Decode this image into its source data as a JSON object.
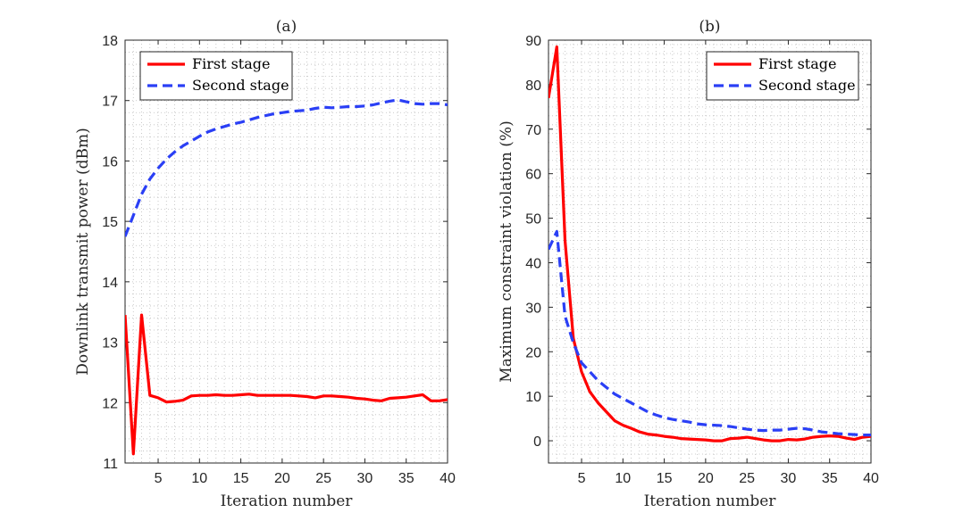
{
  "chart_data": [
    {
      "type": "line",
      "title": "(a)",
      "xlabel": "Iteration number",
      "ylabel": "Downlink transmit power (dBm)",
      "xlim": [
        1,
        40
      ],
      "ylim": [
        11,
        18
      ],
      "xticks": [
        5,
        10,
        15,
        20,
        25,
        30,
        35,
        40
      ],
      "yticks": [
        11,
        12,
        13,
        14,
        15,
        16,
        17,
        18
      ],
      "grid": "minor-dotted",
      "legend_position": "top-left",
      "series": [
        {
          "name": "First stage",
          "color": "#ff0000",
          "style": "solid",
          "x": [
            1,
            2,
            3,
            4,
            5,
            6,
            7,
            8,
            9,
            10,
            11,
            12,
            13,
            14,
            15,
            16,
            17,
            18,
            19,
            20,
            21,
            22,
            23,
            24,
            25,
            26,
            27,
            28,
            29,
            30,
            31,
            32,
            33,
            34,
            35,
            36,
            37,
            38,
            39,
            40
          ],
          "values": [
            13.45,
            11.15,
            13.45,
            12.12,
            12.08,
            12.01,
            12.02,
            12.04,
            12.11,
            12.12,
            12.12,
            12.13,
            12.12,
            12.12,
            12.13,
            12.14,
            12.12,
            12.12,
            12.12,
            12.12,
            12.12,
            12.11,
            12.1,
            12.08,
            12.11,
            12.11,
            12.1,
            12.09,
            12.07,
            12.06,
            12.04,
            12.03,
            12.07,
            12.08,
            12.09,
            12.11,
            12.13,
            12.03,
            12.03,
            12.05
          ]
        },
        {
          "name": "Second stage",
          "color": "#2a3ff5",
          "style": "dashed",
          "x": [
            1,
            2,
            3,
            4,
            5,
            6,
            7,
            8,
            9,
            10,
            11,
            12,
            13,
            14,
            15,
            16,
            17,
            18,
            19,
            20,
            21,
            22,
            23,
            24,
            25,
            26,
            27,
            28,
            29,
            30,
            31,
            32,
            33,
            34,
            35,
            36,
            37,
            38,
            39,
            40
          ],
          "values": [
            14.75,
            15.1,
            15.45,
            15.7,
            15.88,
            16.03,
            16.15,
            16.25,
            16.33,
            16.41,
            16.48,
            16.53,
            16.57,
            16.61,
            16.64,
            16.68,
            16.72,
            16.75,
            16.78,
            16.8,
            16.82,
            16.83,
            16.84,
            16.87,
            16.89,
            16.88,
            16.89,
            16.9,
            16.9,
            16.91,
            16.93,
            16.96,
            16.99,
            17.01,
            16.98,
            16.95,
            16.94,
            16.95,
            16.95,
            16.93
          ]
        }
      ]
    },
    {
      "type": "line",
      "title": "(b)",
      "xlabel": "Iteration number",
      "ylabel": "Maximum constraint violation (%)",
      "xlim": [
        1,
        40
      ],
      "ylim": [
        -5,
        90
      ],
      "xticks": [
        5,
        10,
        15,
        20,
        25,
        30,
        35,
        40
      ],
      "yticks": [
        0,
        10,
        20,
        30,
        40,
        50,
        60,
        70,
        80,
        90
      ],
      "grid": "minor-dotted",
      "legend_position": "top-right",
      "series": [
        {
          "name": "First stage",
          "color": "#ff0000",
          "style": "solid",
          "x": [
            1,
            2,
            3,
            4,
            5,
            6,
            7,
            8,
            9,
            10,
            11,
            12,
            13,
            14,
            15,
            16,
            17,
            18,
            19,
            20,
            21,
            22,
            23,
            24,
            25,
            26,
            27,
            28,
            29,
            30,
            31,
            32,
            33,
            34,
            35,
            36,
            37,
            38,
            39,
            40
          ],
          "values": [
            77,
            88.5,
            45,
            23,
            15.5,
            11,
            8.5,
            6.5,
            4.5,
            3.5,
            2.8,
            2.0,
            1.5,
            1.3,
            1.0,
            0.8,
            0.5,
            0.4,
            0.3,
            0.2,
            0.0,
            0.0,
            0.5,
            0.6,
            0.8,
            0.5,
            0.2,
            0.0,
            0.0,
            0.3,
            0.2,
            0.4,
            0.8,
            1.0,
            1.1,
            1.0,
            0.6,
            0.3,
            0.8,
            1.0
          ]
        },
        {
          "name": "Second stage",
          "color": "#2a3ff5",
          "style": "dashed",
          "x": [
            1,
            2,
            3,
            4,
            5,
            6,
            7,
            8,
            9,
            10,
            11,
            12,
            13,
            14,
            15,
            16,
            17,
            18,
            19,
            20,
            21,
            22,
            23,
            24,
            25,
            26,
            27,
            28,
            29,
            30,
            31,
            32,
            33,
            34,
            35,
            36,
            37,
            38,
            39,
            40
          ],
          "values": [
            43,
            47,
            28,
            22,
            17.5,
            15.5,
            13.5,
            12,
            10.5,
            9.5,
            8.5,
            7.5,
            6.5,
            5.8,
            5.2,
            4.8,
            4.5,
            4.2,
            3.8,
            3.6,
            3.5,
            3.4,
            3.2,
            2.9,
            2.6,
            2.4,
            2.3,
            2.4,
            2.4,
            2.6,
            2.8,
            2.7,
            2.4,
            2.0,
            1.8,
            1.6,
            1.5,
            1.4,
            1.3,
            1.3
          ]
        }
      ]
    }
  ]
}
